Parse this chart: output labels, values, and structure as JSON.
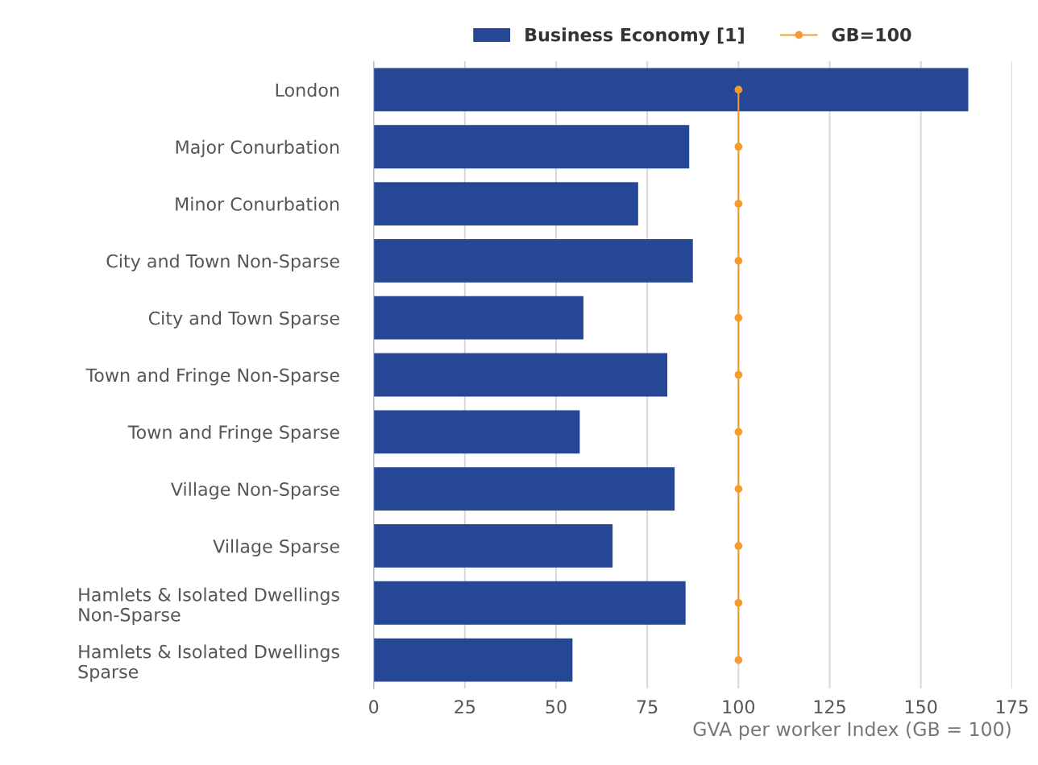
{
  "chart_data": {
    "type": "bar",
    "orientation": "horizontal",
    "xlabel": "GVA per worker Index (GB = 100)",
    "categories": [
      "London",
      "Major Conurbation",
      "Minor Conurbation",
      "City and Town Non-Sparse",
      "City and Town Sparse",
      "Town and Fringe Non-Sparse",
      "Town and Fringe Sparse",
      "Village Non-Sparse",
      "Village Sparse",
      "Hamlets & Isolated Dwellings\nNon-Sparse",
      "Hamlets & Isolated Dwellings\nSparse"
    ],
    "series": [
      {
        "name": "Business Economy [1]",
        "color": "#264796",
        "values": [
          163,
          86.5,
          72.5,
          87.5,
          57.5,
          80.5,
          56.5,
          82.5,
          65.5,
          85.5,
          54.5
        ]
      },
      {
        "name": "GB=100",
        "type": "line",
        "color": "#f39b2f",
        "marker": "circle",
        "values": [
          100,
          100,
          100,
          100,
          100,
          100,
          100,
          100,
          100,
          100,
          100
        ]
      }
    ],
    "xlim": [
      0,
      175
    ],
    "xticks": [
      0,
      25,
      50,
      75,
      100,
      125,
      150,
      175
    ],
    "grid": "x",
    "legend": "top"
  }
}
